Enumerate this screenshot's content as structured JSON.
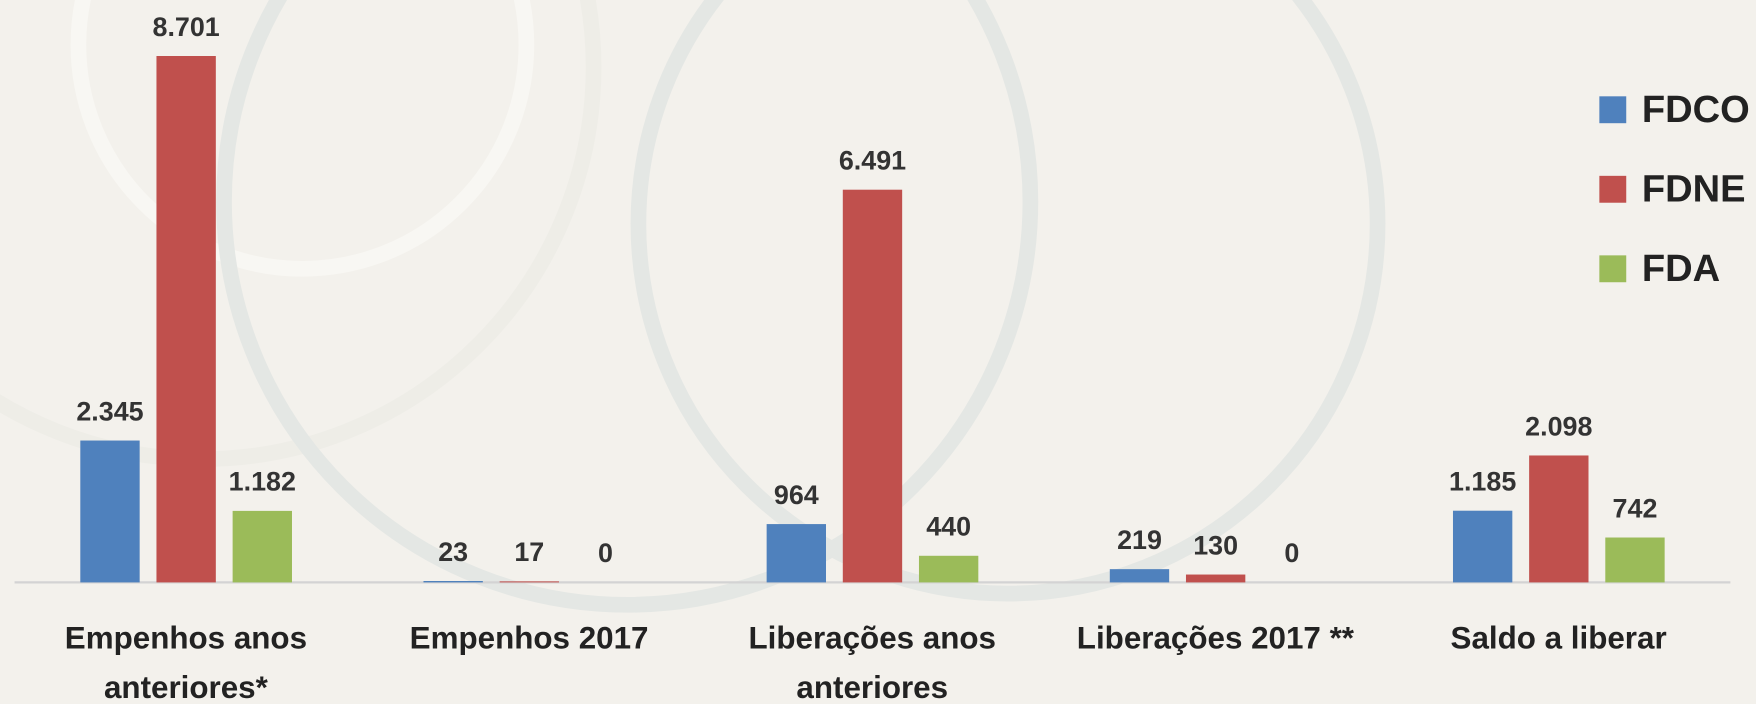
{
  "chart_data": {
    "type": "bar",
    "categories": [
      "Empenhos anos anteriores*",
      "Empenhos 2017",
      "Liberações anos anteriores",
      "Liberações 2017 **",
      "Saldo a liberar"
    ],
    "series": [
      {
        "name": "FDCO",
        "color": "#4f81bd",
        "values": [
          2345,
          23,
          964,
          219,
          1185
        ],
        "value_labels": [
          "2.345",
          "23",
          "964",
          "219",
          "1.185"
        ]
      },
      {
        "name": "FDNE",
        "color": "#c0504d",
        "values": [
          8701,
          17,
          6491,
          130,
          2098
        ],
        "value_labels": [
          "8.701",
          "17",
          "6.491",
          "130",
          "2.098"
        ]
      },
      {
        "name": "FDA",
        "color": "#9bbb59",
        "values": [
          1182,
          0,
          440,
          0,
          742
        ],
        "value_labels": [
          "1.182",
          "0",
          "440",
          "0",
          "742"
        ]
      }
    ],
    "legend": "right"
  }
}
